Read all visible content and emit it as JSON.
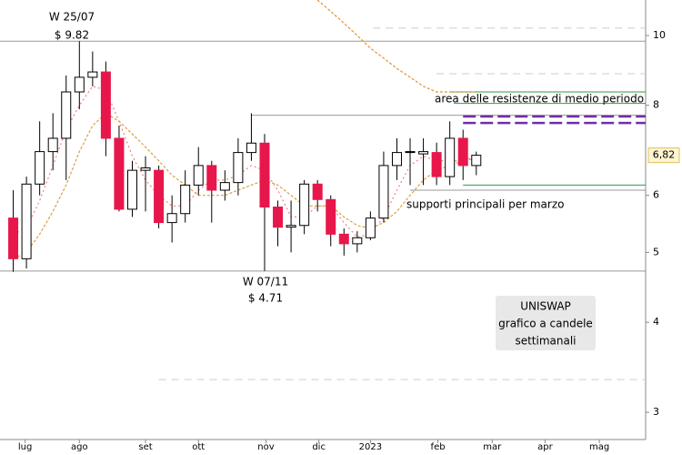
{
  "chart_data": {
    "type": "candlestick",
    "x": [
      1,
      2,
      3,
      4,
      5,
      6,
      7,
      8,
      9,
      10,
      11,
      12,
      13,
      14,
      15,
      16,
      17,
      18,
      19,
      20,
      21,
      22,
      23,
      24,
      25,
      26,
      27,
      28,
      29,
      30,
      31,
      32,
      33,
      34,
      35,
      36
    ],
    "open": [
      5.58,
      4.9,
      6.22,
      6.9,
      7.2,
      8.35,
      8.75,
      8.9,
      7.2,
      5.74,
      6.5,
      6.5,
      5.5,
      5.66,
      6.2,
      6.6,
      6.1,
      6.25,
      6.88,
      7.09,
      5.78,
      5.42,
      5.45,
      6.22,
      5.92,
      5.3,
      5.14,
      5.24,
      5.58,
      6.6,
      6.88,
      6.85,
      6.88,
      6.37,
      7.2,
      6.6
    ],
    "high": [
      6.1,
      6.37,
      7.6,
      7.8,
      8.8,
      9.82,
      9.5,
      9.2,
      7.5,
      6.7,
      6.8,
      6.6,
      6.0,
      6.5,
      7.0,
      6.7,
      6.5,
      7.2,
      7.8,
      7.3,
      5.9,
      5.9,
      6.3,
      6.3,
      6.0,
      5.4,
      5.35,
      5.7,
      6.9,
      7.2,
      7.2,
      7.2,
      7.1,
      7.6,
      7.4,
      6.9
    ],
    "low": [
      4.7,
      4.75,
      6.0,
      6.5,
      6.3,
      7.9,
      8.5,
      6.8,
      5.7,
      5.6,
      5.7,
      5.4,
      5.16,
      5.5,
      6.0,
      5.5,
      5.9,
      6.0,
      6.7,
      4.71,
      5.1,
      5.0,
      5.3,
      5.7,
      5.1,
      4.95,
      5.0,
      5.2,
      5.5,
      6.3,
      6.2,
      6.2,
      6.2,
      6.2,
      6.3,
      6.4
    ],
    "close": [
      4.9,
      6.22,
      6.9,
      7.2,
      8.35,
      8.75,
      8.9,
      7.2,
      5.74,
      6.5,
      6.55,
      5.5,
      5.66,
      6.2,
      6.6,
      6.1,
      6.25,
      6.88,
      7.09,
      5.78,
      5.42,
      5.45,
      6.22,
      5.92,
      5.3,
      5.14,
      5.24,
      5.58,
      6.6,
      6.88,
      6.9,
      6.9,
      6.37,
      7.2,
      6.6,
      6.82
    ],
    "up_color": "#ffffff",
    "down_color": "#e8174b",
    "overlays": [
      {
        "color": "#f08080",
        "dash": "2 3",
        "values": [
          5.3,
          5.4,
          5.9,
          6.6,
          7.4,
          8.0,
          8.5,
          8.4,
          7.6,
          6.8,
          6.3,
          6.0,
          5.8,
          5.8,
          6.1,
          6.3,
          6.3,
          6.4,
          6.6,
          6.5,
          6.1,
          5.6,
          5.6,
          5.8,
          5.8,
          5.5,
          5.25,
          5.3,
          5.6,
          6.1,
          6.6,
          6.8,
          6.7,
          6.7,
          6.7,
          6.8
        ]
      },
      {
        "color": "#d9a040",
        "dash": "3 2",
        "values": [
          4.9,
          5.0,
          5.3,
          5.7,
          6.2,
          6.9,
          7.5,
          7.8,
          7.6,
          7.3,
          7.0,
          6.7,
          6.4,
          6.2,
          6.0,
          6.0,
          6.0,
          6.1,
          6.2,
          6.3,
          6.2,
          6.0,
          5.8,
          5.8,
          5.8,
          5.6,
          5.45,
          5.4,
          5.5,
          5.7,
          6.0,
          6.3,
          6.5,
          6.6,
          6.7,
          6.75
        ]
      },
      {
        "color": "#e89030",
        "dash": "3 2",
        "values": [
          null,
          null,
          null,
          null,
          null,
          null,
          null,
          null,
          null,
          null,
          null,
          null,
          null,
          null,
          null,
          null,
          null,
          null,
          null,
          null,
          null,
          null,
          null,
          11.2,
          10.8,
          10.4,
          10.0,
          9.6,
          9.3,
          9.0,
          8.75,
          8.5,
          8.35,
          8.35,
          8.35,
          8.35
        ]
      }
    ],
    "levels": [
      {
        "value": 9.82,
        "from": 0,
        "color": "#999999",
        "dash": "none"
      },
      {
        "value": 4.71,
        "from": 0,
        "color": "#999999",
        "dash": "none"
      },
      {
        "value": 7.75,
        "from": 19,
        "color": "#999999",
        "dash": "none"
      },
      {
        "value": 8.35,
        "from": 34,
        "color": "#2e9e3e",
        "dash": "none"
      },
      {
        "value": 8.05,
        "from": 34.3,
        "color": "#2e9e3e",
        "dash": "none"
      },
      {
        "value": 7.72,
        "from": 35,
        "color": "#7030a0",
        "dash": "14 5"
      },
      {
        "value": 7.56,
        "from": 35,
        "color": "#7030a0",
        "dash": "14 5"
      },
      {
        "value": 6.2,
        "from": 35,
        "color": "#2e9e3e",
        "dash": "none"
      },
      {
        "value": 6.1,
        "from": 31,
        "color": "#999999",
        "dash": "none"
      },
      {
        "value": 10.24,
        "from": 28.2,
        "color": "#cccccc",
        "dash": "8 6"
      },
      {
        "value": 8.85,
        "from": 33,
        "color": "#cccccc",
        "dash": "8 6"
      },
      {
        "value": 3.33,
        "from": 12,
        "color": "#cccccc",
        "dash": "8 6"
      }
    ],
    "xlim": [
      0,
      48.8
    ],
    "xticks": [
      {
        "value": 1.9,
        "label": "lug"
      },
      {
        "value": 6,
        "label": "ago"
      },
      {
        "value": 11,
        "label": "set"
      },
      {
        "value": 15,
        "label": "ott"
      },
      {
        "value": 20.1,
        "label": "nov"
      },
      {
        "value": 24.1,
        "label": "dic"
      },
      {
        "value": 28,
        "label": "2023"
      },
      {
        "value": 33.1,
        "label": "feb"
      },
      {
        "value": 37.2,
        "label": "mar"
      },
      {
        "value": 41.2,
        "label": "apr"
      },
      {
        "value": 45.3,
        "label": "mag"
      }
    ],
    "ylim": [
      2.75,
      11.2
    ],
    "yticks": [
      3,
      4,
      5,
      6,
      8,
      10
    ],
    "log_scale": true,
    "last_price": {
      "value": 6.82,
      "label": "6,82"
    },
    "annotations": [
      "W 25/07",
      "$ 9.82",
      "W 07/11",
      "$ 4.71",
      "area delle resistenze di medio periodo",
      "supporti principali per marzo"
    ],
    "info_box": [
      "UNISWAP",
      "grafico a candele",
      "settimanali"
    ]
  }
}
